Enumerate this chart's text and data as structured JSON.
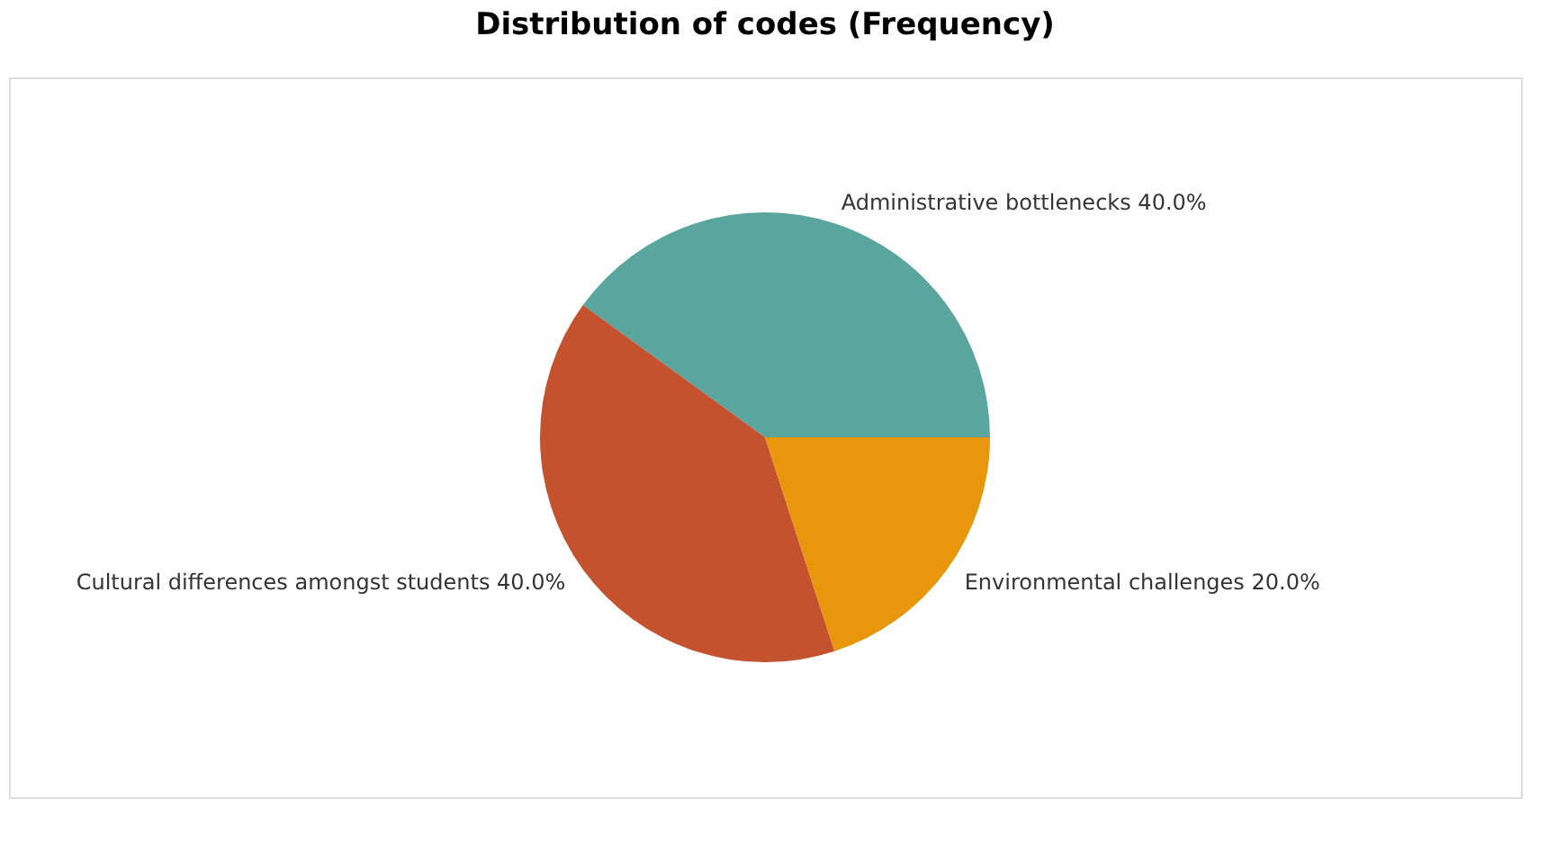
{
  "chart_data": {
    "type": "pie",
    "title": "Distribution of codes (Frequency)",
    "categories": [
      "Administrative bottlenecks",
      "Cultural differences amongst students",
      "Environmental challenges"
    ],
    "values": [
      40,
      40,
      20
    ],
    "colors": [
      "#5ba59f",
      "#c4522f",
      "#e8960c"
    ],
    "value_labels": [
      "40.0%",
      "40.0%",
      "20.0%"
    ],
    "legend": false
  }
}
